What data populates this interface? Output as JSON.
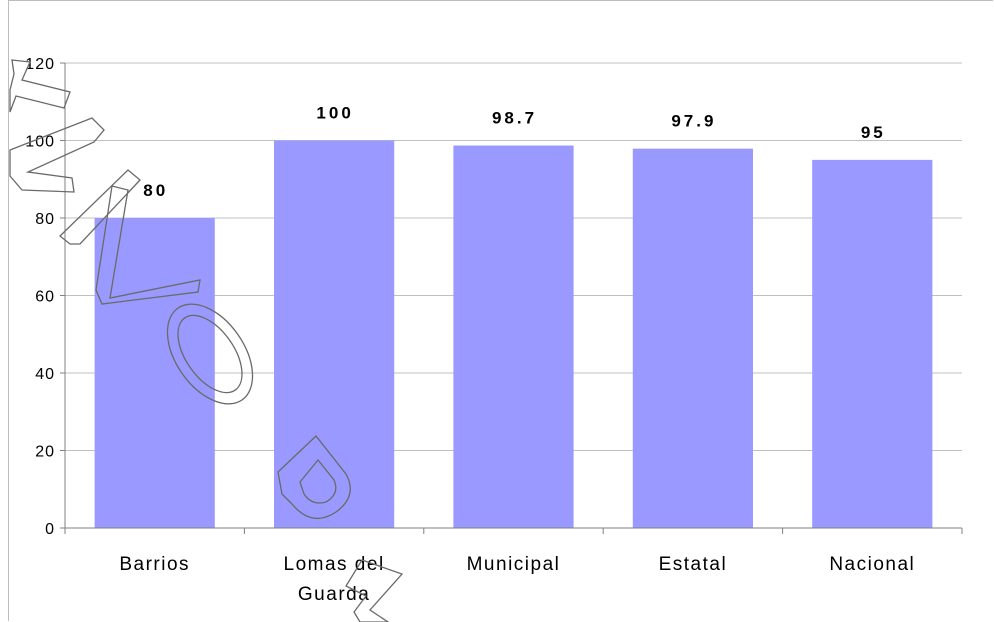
{
  "chart_data": {
    "type": "bar",
    "categories": [
      [
        "Barrios"
      ],
      [
        "Lomas del",
        "Guarda"
      ],
      [
        "Municipal"
      ],
      [
        "Estatal"
      ],
      [
        "Nacional"
      ]
    ],
    "values": [
      80,
      100,
      98.7,
      97.9,
      95
    ],
    "data_labels": [
      "80",
      "100",
      "98.7",
      "97.9",
      "95"
    ],
    "y_ticks": [
      0,
      20,
      40,
      60,
      80,
      100,
      120
    ],
    "ylim": [
      0,
      120
    ],
    "grid": true,
    "bar_color": "#9999ff",
    "grid_color": "#c0c0c0",
    "axis_color": "#808080",
    "title": "",
    "xlabel": "",
    "ylabel": ""
  },
  "watermark": {
    "text": "ARCHIVO PAPA",
    "style": "outlined-diagonal"
  }
}
